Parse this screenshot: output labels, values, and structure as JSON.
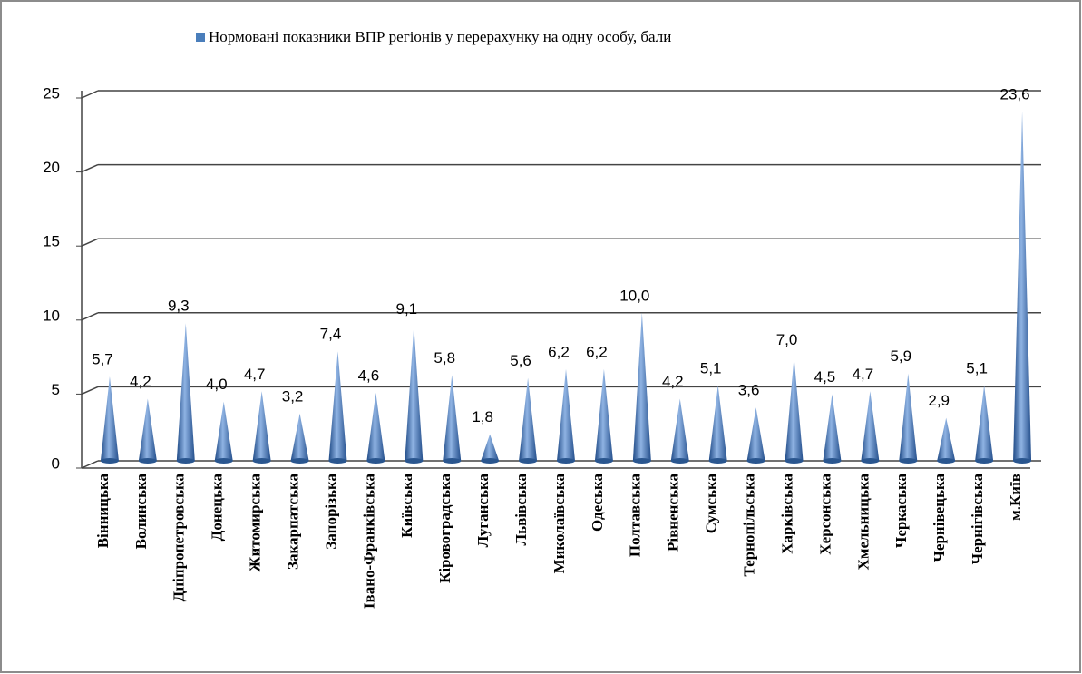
{
  "chart_data": {
    "type": "bar",
    "series": [
      {
        "name": "Нормовані показники ВПР регіонів у перерахунку на одну особу, бали",
        "color": "#4a7ebb",
        "values": [
          5.7,
          4.2,
          9.3,
          4.0,
          4.7,
          3.2,
          7.4,
          4.6,
          9.1,
          5.8,
          1.8,
          5.6,
          6.2,
          6.2,
          10.0,
          4.2,
          5.1,
          3.6,
          7.0,
          4.5,
          4.7,
          5.9,
          2.9,
          5.1,
          23.6
        ],
        "value_labels": [
          "5,7",
          "4,2",
          "9,3",
          "4,0",
          "4,7",
          "3,2",
          "7,4",
          "4,6",
          "9,1",
          "5,8",
          "1,8",
          "5,6",
          "6,2",
          "6,2",
          "10,0",
          "4,2",
          "5,1",
          "3,6",
          "7,0",
          "4,5",
          "4,7",
          "5,9",
          "2,9",
          "5,1",
          "23,6"
        ]
      }
    ],
    "categories": [
      "Вінницька",
      "Волинська",
      "Дніпропетровська",
      "Донецька",
      "Житомирська",
      "Закарпатська",
      "Запорізька",
      "Івано-Франківська",
      "Київська",
      "Кіровоградська",
      "Луганська",
      "Львівська",
      "Миколаївська",
      "Одеська",
      "Полтавська",
      "Рівненська",
      "Сумська",
      "Тернопільська",
      "Харківська",
      "Херсонська",
      "Хмельницька",
      "Черкаська",
      "Чернівецька",
      "Чернігівська",
      "м.Київ"
    ],
    "ylim": [
      0,
      25
    ],
    "yticks": [
      0,
      5,
      10,
      15,
      20,
      25
    ],
    "grid": true,
    "legend": "top"
  }
}
